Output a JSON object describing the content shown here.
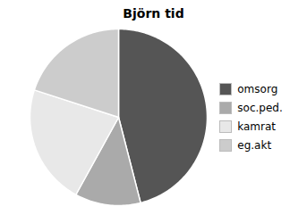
{
  "chart_data": {
    "type": "pie",
    "title": "Björn tid",
    "categories": [
      "omsorg",
      "soc.ped.",
      "kamrat",
      "eg.akt"
    ],
    "values": [
      46,
      12,
      22,
      20
    ],
    "colors": [
      "#555555",
      "#aaaaaa",
      "#e8e8e8",
      "#cccccc"
    ],
    "legend": "right"
  }
}
